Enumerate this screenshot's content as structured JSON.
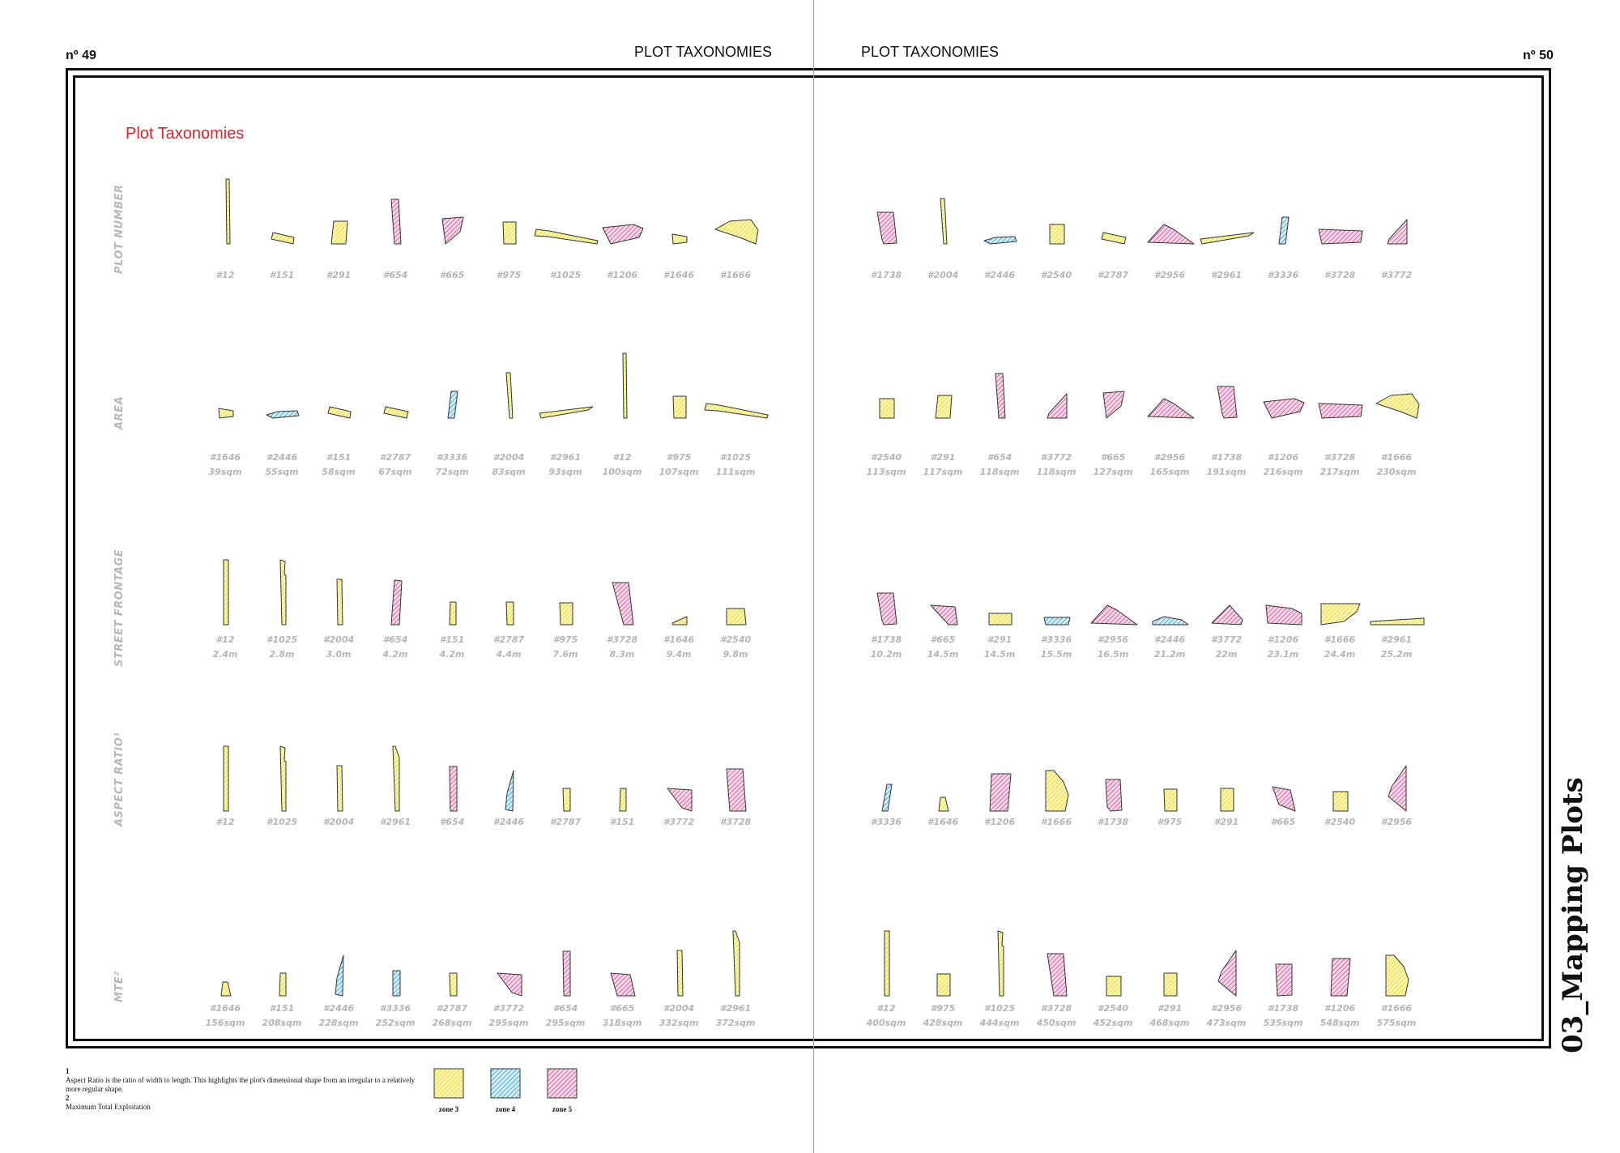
{
  "header": {
    "page_left_number": "nº 49",
    "page_right_number": "nº 50",
    "left_title": "PLOT TAXONOMIES",
    "right_title": "PLOT TAXONOMIES"
  },
  "section_title": "Plot Taxonomies",
  "chapter_title": "03_Mapping Plots",
  "rows": [
    {
      "label": "PLOT NUMBER",
      "plots": [
        {
          "id": "#12",
          "zone": 3,
          "shape": "plot-12"
        },
        {
          "id": "#151",
          "zone": 3,
          "shape": "plot-151"
        },
        {
          "id": "#291",
          "zone": 3,
          "shape": "plot-291"
        },
        {
          "id": "#654",
          "zone": 5,
          "shape": "plot-654"
        },
        {
          "id": "#665",
          "zone": 5,
          "shape": "plot-665"
        },
        {
          "id": "#975",
          "zone": 3,
          "shape": "plot-975"
        },
        {
          "id": "#1025",
          "zone": 3,
          "shape": "plot-1025"
        },
        {
          "id": "#1206",
          "zone": 5,
          "shape": "plot-1206"
        },
        {
          "id": "#1646",
          "zone": 3,
          "shape": "plot-1646"
        },
        {
          "id": "#1666",
          "zone": 3,
          "shape": "plot-1666"
        },
        {
          "id": "#1738",
          "zone": 5,
          "shape": "plot-1738"
        },
        {
          "id": "#2004",
          "zone": 3,
          "shape": "plot-2004"
        },
        {
          "id": "#2446",
          "zone": 4,
          "shape": "plot-2446"
        },
        {
          "id": "#2540",
          "zone": 3,
          "shape": "plot-2540"
        },
        {
          "id": "#2787",
          "zone": 3,
          "shape": "plot-2787"
        },
        {
          "id": "#2956",
          "zone": 5,
          "shape": "plot-2956"
        },
        {
          "id": "#2961",
          "zone": 3,
          "shape": "plot-2961"
        },
        {
          "id": "#3336",
          "zone": 4,
          "shape": "plot-3336"
        },
        {
          "id": "#3728",
          "zone": 5,
          "shape": "plot-3728"
        },
        {
          "id": "#3772",
          "zone": 5,
          "shape": "plot-3772"
        }
      ]
    },
    {
      "label": "AREA",
      "plots": [
        {
          "id": "#1646",
          "value": "39sqm",
          "zone": 3,
          "shape": "plot-1646"
        },
        {
          "id": "#2446",
          "value": "55sqm",
          "zone": 4,
          "shape": "plot-2446"
        },
        {
          "id": "#151",
          "value": "58sqm",
          "zone": 3,
          "shape": "plot-151"
        },
        {
          "id": "#2787",
          "value": "67sqm",
          "zone": 3,
          "shape": "plot-2787"
        },
        {
          "id": "#3336",
          "value": "72sqm",
          "zone": 4,
          "shape": "plot-3336"
        },
        {
          "id": "#2004",
          "value": "83sqm",
          "zone": 3,
          "shape": "plot-2004"
        },
        {
          "id": "#2961",
          "value": "93sqm",
          "zone": 3,
          "shape": "plot-2961"
        },
        {
          "id": "#12",
          "value": "100sqm",
          "zone": 3,
          "shape": "plot-12"
        },
        {
          "id": "#975",
          "value": "107sqm",
          "zone": 3,
          "shape": "plot-975"
        },
        {
          "id": "#1025",
          "value": "111sqm",
          "zone": 3,
          "shape": "plot-1025"
        },
        {
          "id": "#2540",
          "value": "113sqm",
          "zone": 3,
          "shape": "plot-2540"
        },
        {
          "id": "#291",
          "value": "117sqm",
          "zone": 3,
          "shape": "plot-291"
        },
        {
          "id": "#654",
          "value": "118sqm",
          "zone": 5,
          "shape": "plot-654"
        },
        {
          "id": "#3772",
          "value": "118sqm",
          "zone": 5,
          "shape": "plot-3772"
        },
        {
          "id": "#665",
          "value": "127sqm",
          "zone": 5,
          "shape": "plot-665"
        },
        {
          "id": "#2956",
          "value": "165sqm",
          "zone": 5,
          "shape": "plot-2956"
        },
        {
          "id": "#1738",
          "value": "191sqm",
          "zone": 5,
          "shape": "plot-1738"
        },
        {
          "id": "#1206",
          "value": "216sqm",
          "zone": 5,
          "shape": "plot-1206"
        },
        {
          "id": "#3728",
          "value": "217sqm",
          "zone": 5,
          "shape": "plot-3728"
        },
        {
          "id": "#1666",
          "value": "230sqm",
          "zone": 3,
          "shape": "plot-1666"
        }
      ]
    },
    {
      "label": "STREET FRONTAGE",
      "plots": [
        {
          "id": "#12",
          "value": "2.4m",
          "zone": 3,
          "shape": "front-12"
        },
        {
          "id": "#1025",
          "value": "2.8m",
          "zone": 3,
          "shape": "front-1025"
        },
        {
          "id": "#2004",
          "value": "3.0m",
          "zone": 3,
          "shape": "front-2004"
        },
        {
          "id": "#654",
          "value": "4.2m",
          "zone": 5,
          "shape": "front-654"
        },
        {
          "id": "#151",
          "value": "4.2m",
          "zone": 3,
          "shape": "front-151"
        },
        {
          "id": "#2787",
          "value": "4.4m",
          "zone": 3,
          "shape": "front-2787"
        },
        {
          "id": "#975",
          "value": "7.6m",
          "zone": 3,
          "shape": "front-975"
        },
        {
          "id": "#3728",
          "value": "8.3m",
          "zone": 5,
          "shape": "front-3728"
        },
        {
          "id": "#1646",
          "value": "9.4m",
          "zone": 3,
          "shape": "front-1646"
        },
        {
          "id": "#2540",
          "value": "9.8m",
          "zone": 3,
          "shape": "front-2540"
        },
        {
          "id": "#1738",
          "value": "10.2m",
          "zone": 5,
          "shape": "front-1738"
        },
        {
          "id": "#665",
          "value": "14.5m",
          "zone": 5,
          "shape": "front-665"
        },
        {
          "id": "#291",
          "value": "14.5m",
          "zone": 3,
          "shape": "front-291"
        },
        {
          "id": "#3336",
          "value": "15.5m",
          "zone": 4,
          "shape": "front-3336"
        },
        {
          "id": "#2956",
          "value": "16.5m",
          "zone": 5,
          "shape": "front-2956"
        },
        {
          "id": "#2446",
          "value": "21.2m",
          "zone": 4,
          "shape": "front-2446"
        },
        {
          "id": "#3772",
          "value": "22m",
          "zone": 5,
          "shape": "front-3772"
        },
        {
          "id": "#1206",
          "value": "23.1m",
          "zone": 5,
          "shape": "front-1206"
        },
        {
          "id": "#1666",
          "value": "24.4m",
          "zone": 3,
          "shape": "front-1666"
        },
        {
          "id": "#2961",
          "value": "25.2m",
          "zone": 3,
          "shape": "front-2961"
        }
      ]
    },
    {
      "label": "ASPECT RATIO¹",
      "plots": [
        {
          "id": "#12",
          "zone": 3,
          "shape": "front-12"
        },
        {
          "id": "#1025",
          "zone": 3,
          "shape": "front-1025"
        },
        {
          "id": "#2004",
          "zone": 3,
          "shape": "front-2004"
        },
        {
          "id": "#2961",
          "zone": 3,
          "shape": "ar-2961"
        },
        {
          "id": "#654",
          "zone": 5,
          "shape": "ar-654"
        },
        {
          "id": "#2446",
          "zone": 4,
          "shape": "ar-2446"
        },
        {
          "id": "#2787",
          "zone": 3,
          "shape": "ar-2787"
        },
        {
          "id": "#151",
          "zone": 3,
          "shape": "ar-151"
        },
        {
          "id": "#3772",
          "zone": 5,
          "shape": "ar-3772"
        },
        {
          "id": "#3728",
          "zone": 5,
          "shape": "ar-3728"
        },
        {
          "id": "#3336",
          "zone": 4,
          "shape": "ar-3336"
        },
        {
          "id": "#1646",
          "zone": 3,
          "shape": "ar-1646"
        },
        {
          "id": "#1206",
          "zone": 5,
          "shape": "ar-1206"
        },
        {
          "id": "#1666",
          "zone": 3,
          "shape": "ar-1666"
        },
        {
          "id": "#1738",
          "zone": 5,
          "shape": "ar-1738"
        },
        {
          "id": "#975",
          "zone": 3,
          "shape": "ar-975"
        },
        {
          "id": "#291",
          "zone": 3,
          "shape": "ar-291"
        },
        {
          "id": "#665",
          "zone": 5,
          "shape": "ar-665"
        },
        {
          "id": "#2540",
          "zone": 3,
          "shape": "ar-2540"
        },
        {
          "id": "#2956",
          "zone": 5,
          "shape": "ar-2956"
        }
      ]
    },
    {
      "label": "MTE²",
      "plots": [
        {
          "id": "#1646",
          "value": "156sqm",
          "zone": 3,
          "shape": "ar-1646"
        },
        {
          "id": "#151",
          "value": "208sqm",
          "zone": 3,
          "shape": "ar-151"
        },
        {
          "id": "#2446",
          "value": "228sqm",
          "zone": 4,
          "shape": "ar-2446"
        },
        {
          "id": "#3336",
          "value": "252sqm",
          "zone": 4,
          "shape": "mte-3336"
        },
        {
          "id": "#2787",
          "value": "268sqm",
          "zone": 3,
          "shape": "ar-2787"
        },
        {
          "id": "#3772",
          "value": "295sqm",
          "zone": 5,
          "shape": "ar-3772"
        },
        {
          "id": "#654",
          "value": "295sqm",
          "zone": 5,
          "shape": "ar-654"
        },
        {
          "id": "#665",
          "value": "318sqm",
          "zone": 5,
          "shape": "mte-665"
        },
        {
          "id": "#2004",
          "value": "332sqm",
          "zone": 3,
          "shape": "mte-2004"
        },
        {
          "id": "#2961",
          "value": "372sqm",
          "zone": 3,
          "shape": "ar-2961"
        },
        {
          "id": "#12",
          "value": "400sqm",
          "zone": 3,
          "shape": "front-12"
        },
        {
          "id": "#975",
          "value": "428sqm",
          "zone": 3,
          "shape": "mte-975"
        },
        {
          "id": "#1025",
          "value": "444sqm",
          "zone": 3,
          "shape": "front-1025"
        },
        {
          "id": "#3728",
          "value": "450sqm",
          "zone": 5,
          "shape": "mte-3728"
        },
        {
          "id": "#2540",
          "value": "452sqm",
          "zone": 3,
          "shape": "ar-2540"
        },
        {
          "id": "#291",
          "value": "468sqm",
          "zone": 3,
          "shape": "mte-291"
        },
        {
          "id": "#2956",
          "value": "473sqm",
          "zone": 5,
          "shape": "ar-2956"
        },
        {
          "id": "#1738",
          "value": "535sqm",
          "zone": 5,
          "shape": "mte-1738"
        },
        {
          "id": "#1206",
          "value": "548sqm",
          "zone": 5,
          "shape": "mte-1206"
        },
        {
          "id": "#1666",
          "value": "575sqm",
          "zone": 3,
          "shape": "ar-1666"
        }
      ]
    }
  ],
  "footnotes": {
    "note1_marker": "1",
    "note1_text": "Aspect Ratio is the ratio of width to length. This highlights the plot's dimensional shape from an irregular to a relatively more regular shape.",
    "note2_marker": "2",
    "note2_text": "Maximum Total Exploitation"
  },
  "legend": [
    {
      "label": "zone 3",
      "color": "#f6ec3a"
    },
    {
      "label": "zone 4",
      "color": "#29a8d8"
    },
    {
      "label": "zone 5",
      "color": "#d83a8c"
    }
  ]
}
